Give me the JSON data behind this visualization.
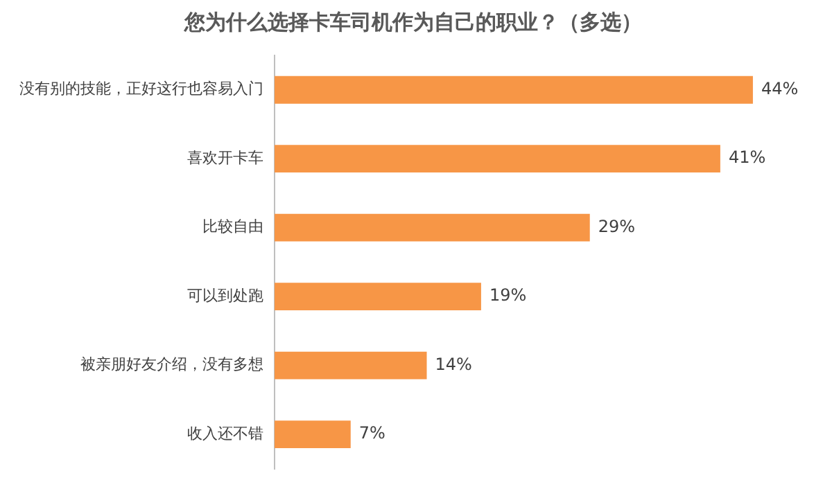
{
  "chart_data": {
    "type": "bar",
    "orientation": "horizontal",
    "title": "您为什么选择卡车司机作为自己的职业？（多选）",
    "categories": [
      "没有别的技能，正好这行也容易入门",
      "喜欢开卡车",
      "比较自由",
      "可以到处跑",
      "被亲朋好友介绍，没有多想",
      "收入还不错"
    ],
    "values": [
      44,
      41,
      29,
      19,
      14,
      7
    ],
    "value_labels": [
      "44%",
      "41%",
      "29%",
      "19%",
      "14%",
      "7%"
    ],
    "color": "#f79646",
    "grid": false,
    "legend": false
  }
}
